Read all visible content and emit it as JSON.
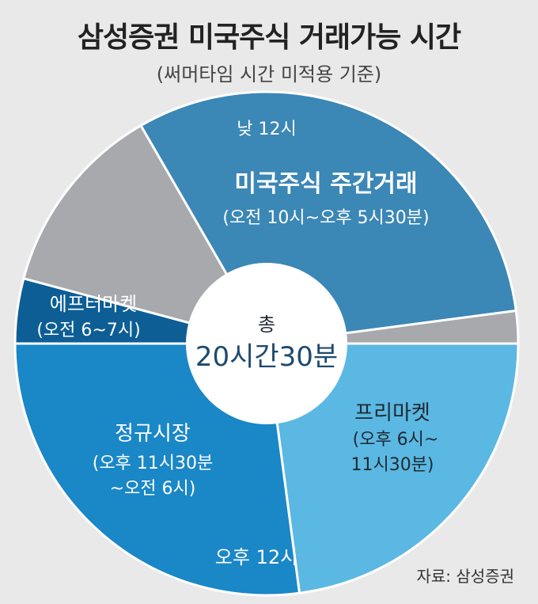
{
  "title": "삼성증권 미국주식 거래가능 시간",
  "subtitle": "(써머타임 시간 미적용 기준)",
  "source": "자료: 삼성증권",
  "center": {
    "line1": "총",
    "line2": "20시간30분"
  },
  "chart_data": {
    "type": "pie",
    "title": "삼성증권 미국주식 거래가능 시간",
    "subtitle": "(써머타임 시간 미적용 기준)",
    "total_label": "총 20시간30분",
    "clock_markers": [
      "낮 12시",
      "오후 12시"
    ],
    "slices": [
      {
        "name": "미국주식 주간거래",
        "detail": "(오전 10시~오후 5시30분)",
        "hours": 7.5,
        "color": "#3b87b6"
      },
      {
        "name": "",
        "detail": "",
        "hours": 0.5,
        "color": "#a8a9ad"
      },
      {
        "name": "프리마켓",
        "detail": "(오후 6시~11시30분)",
        "hours": 5.5,
        "color": "#5bb8e2"
      },
      {
        "name": "정규시장",
        "detail": "(오후 11시30분~오전 6시)",
        "hours": 6.5,
        "color": "#1a87c7"
      },
      {
        "name": "에프터마켓",
        "detail": "(오전 6~7시)",
        "hours": 1,
        "color": "#0d5e95"
      },
      {
        "name": "",
        "detail": "",
        "hours": 3,
        "color": "#a8a9ad"
      }
    ]
  }
}
